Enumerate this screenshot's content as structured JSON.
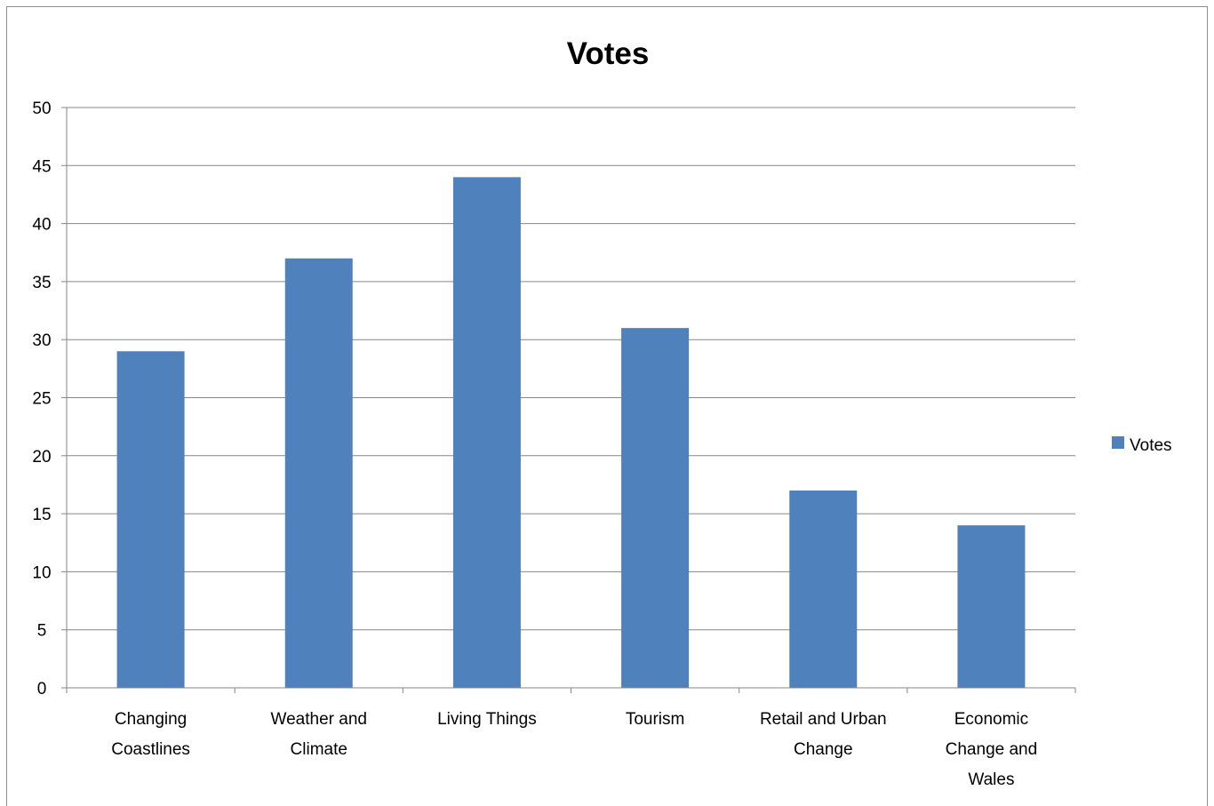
{
  "chart_data": {
    "type": "bar",
    "title": "Votes",
    "categories": [
      [
        "Changing",
        "Coastlines"
      ],
      [
        "Weather and",
        "Climate"
      ],
      [
        "Living Things"
      ],
      [
        "Tourism"
      ],
      [
        "Retail and Urban",
        "Change"
      ],
      [
        "Economic",
        "Change and",
        "Wales"
      ]
    ],
    "series": [
      {
        "name": "Votes",
        "values": [
          29,
          37,
          44,
          31,
          17,
          14
        ],
        "color": "#4F81BD"
      }
    ],
    "ylim": [
      0,
      50
    ],
    "yticks": [
      0,
      5,
      10,
      15,
      20,
      25,
      30,
      35,
      40,
      45,
      50
    ],
    "grid": true,
    "legend_position": "right"
  }
}
